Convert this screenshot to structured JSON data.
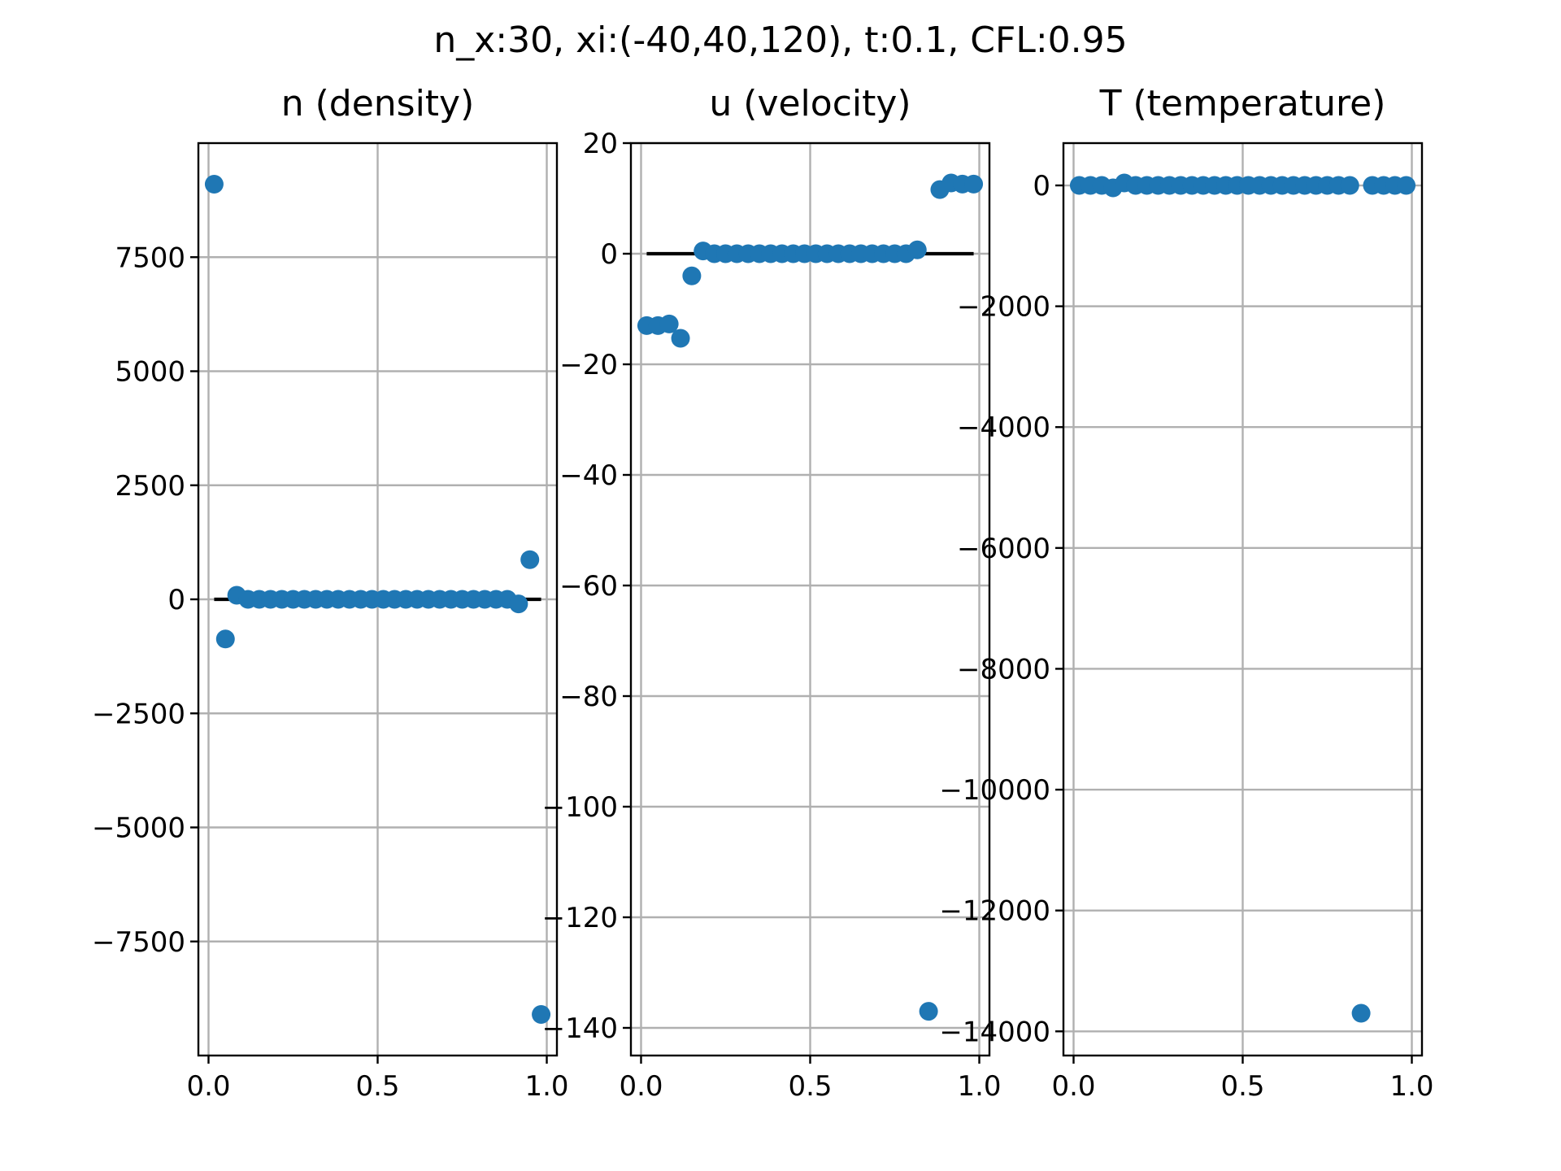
{
  "figure": {
    "suptitle": "n_x:30, xi:(-40,40,120), t:0.1, CFL:0.95",
    "marker_color": "#1f77b4",
    "reference_line_color": "#000000",
    "grid_color": "#b0b0b0"
  },
  "chart_data": [
    {
      "type": "scatter",
      "title": "n (density)",
      "xlabel": "",
      "ylabel": "",
      "xlim": [
        -0.03,
        1.03
      ],
      "ylim": [
        -10000,
        10000
      ],
      "grid": true,
      "xticks": [
        0.0,
        0.5,
        1.0
      ],
      "xtick_labels": [
        "0.0",
        "0.5",
        "1.0"
      ],
      "yticks": [
        -7500,
        -5000,
        -2500,
        0,
        2500,
        5000,
        7500
      ],
      "ytick_labels": [
        "−7500",
        "−5000",
        "−2500",
        "0",
        "2500",
        "5000",
        "7500"
      ],
      "reference_line": {
        "x": [
          0.0167,
          0.9833
        ],
        "y": [
          0,
          0
        ]
      },
      "x": [
        0.0167,
        0.05,
        0.0833,
        0.1167,
        0.15,
        0.1833,
        0.2167,
        0.25,
        0.2833,
        0.3167,
        0.35,
        0.3833,
        0.4167,
        0.45,
        0.4833,
        0.5167,
        0.55,
        0.5833,
        0.6167,
        0.65,
        0.6833,
        0.7167,
        0.75,
        0.7833,
        0.8167,
        0.85,
        0.8833,
        0.9167,
        0.95,
        0.9833
      ],
      "y": [
        9100,
        -870,
        90,
        0,
        0,
        0,
        0,
        0,
        0,
        0,
        0,
        0,
        0,
        0,
        0,
        0,
        0,
        0,
        0,
        0,
        0,
        0,
        0,
        0,
        0,
        0,
        0,
        -100,
        870,
        -9100
      ]
    },
    {
      "type": "scatter",
      "title": "u (velocity)",
      "xlabel": "",
      "ylabel": "",
      "xlim": [
        -0.03,
        1.03
      ],
      "ylim": [
        -145,
        20
      ],
      "grid": true,
      "xticks": [
        0.0,
        0.5,
        1.0
      ],
      "xtick_labels": [
        "0.0",
        "0.5",
        "1.0"
      ],
      "yticks": [
        -140,
        -120,
        -100,
        -80,
        -60,
        -40,
        -20,
        0,
        20
      ],
      "ytick_labels": [
        "−140",
        "−120",
        "−100",
        "−80",
        "−60",
        "−40",
        "−20",
        "0",
        "20"
      ],
      "reference_line": {
        "x": [
          0.0167,
          0.9833
        ],
        "y": [
          0,
          0
        ]
      },
      "x": [
        0.0167,
        0.05,
        0.0833,
        0.1167,
        0.15,
        0.1833,
        0.2167,
        0.25,
        0.2833,
        0.3167,
        0.35,
        0.3833,
        0.4167,
        0.45,
        0.4833,
        0.5167,
        0.55,
        0.5833,
        0.6167,
        0.65,
        0.6833,
        0.7167,
        0.75,
        0.7833,
        0.8167,
        0.85,
        0.8833,
        0.9167,
        0.95,
        0.9833
      ],
      "y": [
        -13,
        -13,
        -12.7,
        -15.3,
        -4,
        0.5,
        0,
        0,
        0,
        0,
        0,
        0,
        0,
        0,
        0,
        0,
        0,
        0,
        0,
        0,
        0,
        0,
        0,
        0,
        0.7,
        -137,
        11.6,
        12.8,
        12.6,
        12.6
      ]
    },
    {
      "type": "scatter",
      "title": "T (temperature)",
      "xlabel": "",
      "ylabel": "",
      "xlim": [
        -0.03,
        1.03
      ],
      "ylim": [
        -14400,
        700
      ],
      "grid": true,
      "xticks": [
        0.0,
        0.5,
        1.0
      ],
      "xtick_labels": [
        "0.0",
        "0.5",
        "1.0"
      ],
      "yticks": [
        -14000,
        -12000,
        -10000,
        -8000,
        -6000,
        -4000,
        -2000,
        0
      ],
      "ytick_labels": [
        "−14000",
        "−12000",
        "−10000",
        "−8000",
        "−6000",
        "−4000",
        "−2000",
        "0"
      ],
      "x": [
        0.0167,
        0.05,
        0.0833,
        0.1167,
        0.15,
        0.1833,
        0.2167,
        0.25,
        0.2833,
        0.3167,
        0.35,
        0.3833,
        0.4167,
        0.45,
        0.4833,
        0.5167,
        0.55,
        0.5833,
        0.6167,
        0.65,
        0.6833,
        0.7167,
        0.75,
        0.7833,
        0.8167,
        0.85,
        0.8833,
        0.9167,
        0.95,
        0.9833
      ],
      "y": [
        0,
        0,
        0,
        -40,
        40,
        0,
        0,
        0,
        0,
        0,
        0,
        0,
        0,
        0,
        0,
        0,
        0,
        0,
        0,
        0,
        0,
        0,
        0,
        0,
        0,
        -13700,
        0,
        0,
        0,
        0
      ]
    }
  ]
}
